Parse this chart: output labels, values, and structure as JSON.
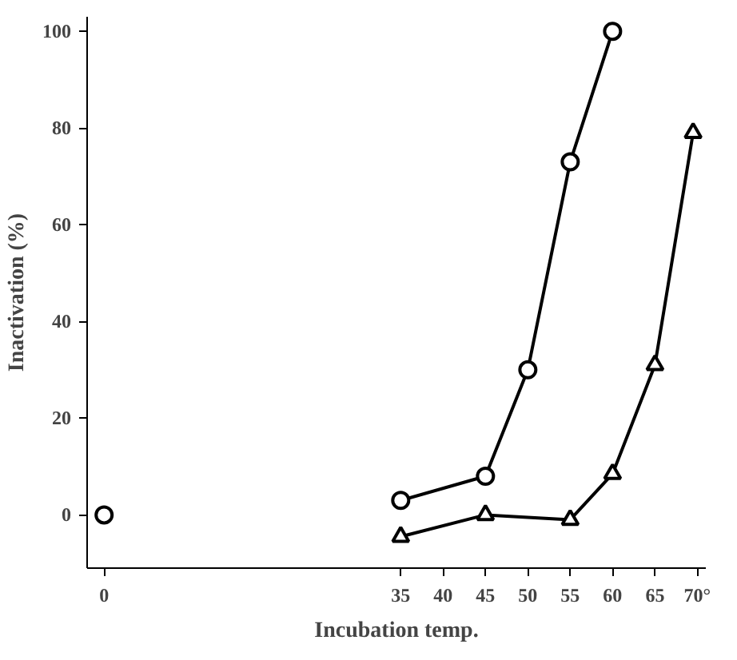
{
  "chart_data": {
    "type": "line",
    "xlabel": "Incubation temp.",
    "ylabel": "Inactivation (%)",
    "xlim": [
      -2,
      71
    ],
    "xticks": [
      0,
      35,
      40,
      45,
      50,
      55,
      60,
      65,
      {
        "value": 70,
        "label": "70°"
      }
    ],
    "ylim": [
      -11,
      103
    ],
    "yticks": [
      0,
      20,
      40,
      60,
      80,
      100
    ],
    "grid": false,
    "series": [
      {
        "color": "#000000",
        "type": "scatter",
        "marker": "circle",
        "x": [
          0
        ],
        "values": [
          0
        ]
      },
      {
        "color": "#000000",
        "marker": "circle",
        "x": [
          35,
          45,
          50,
          55,
          60
        ],
        "values": [
          3,
          8,
          30,
          73,
          100
        ]
      },
      {
        "color": "#000000",
        "marker": "triangle",
        "x": [
          35,
          45,
          55,
          60,
          65,
          69.5
        ],
        "values": [
          -4.5,
          0,
          -1,
          8.5,
          31,
          79
        ]
      }
    ]
  }
}
